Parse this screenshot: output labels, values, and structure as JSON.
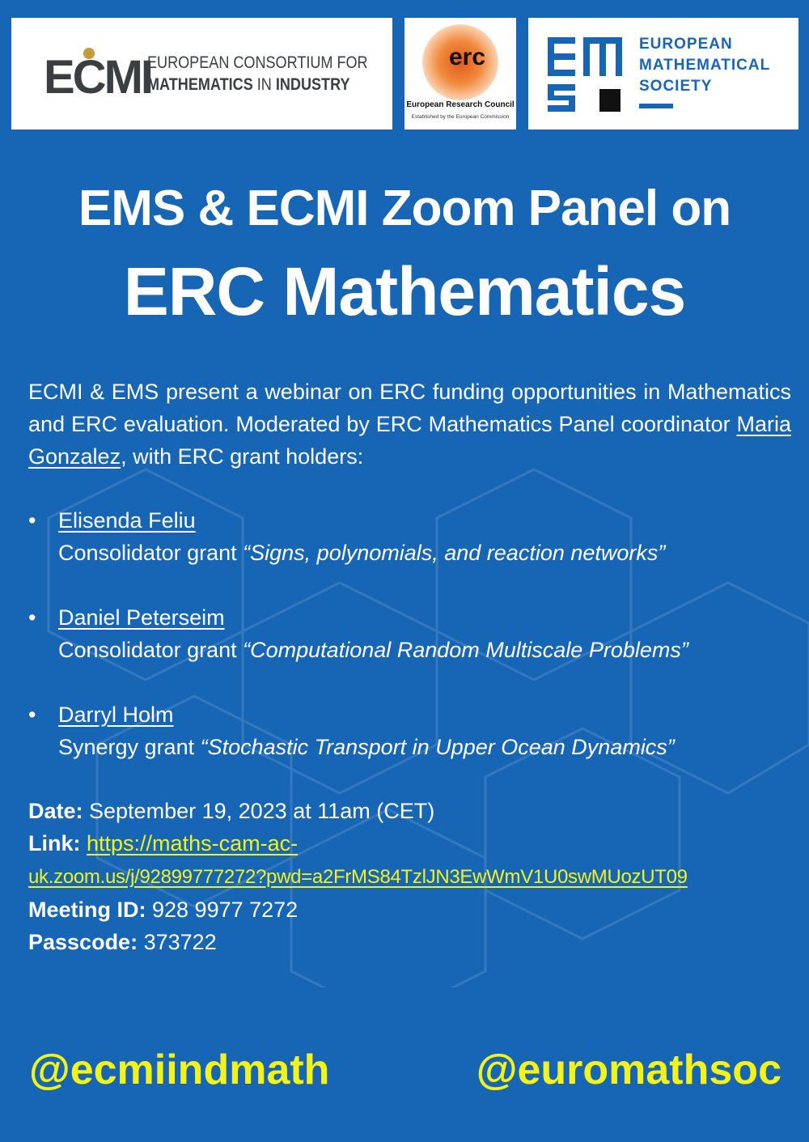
{
  "logos": {
    "ecmi": {
      "mark": "ECMI",
      "line1": "EUROPEAN CONSORTIUM FOR",
      "line2_a": "MATHEMATICS",
      "line2_b": " IN ",
      "line2_c": "INDUSTRY"
    },
    "erc": {
      "mark": "erc",
      "name": "European Research Council",
      "subtitle": "Established by the European Commission",
      "color": "#e2591c"
    },
    "ems": {
      "line1": "EUROPEAN",
      "line2": "MATHEMATICAL",
      "line3": "SOCIETY",
      "color": "#1766b6"
    }
  },
  "title": {
    "line1": "EMS & ECMI Zoom Panel on",
    "line2": "ERC Mathematics"
  },
  "intro": {
    "before": "ECMI & EMS present a webinar on ERC funding opportunities in Mathematics and ERC evaluation. Moderated by ERC Mathematics Panel coordinator ",
    "moderator": "Maria Gonzalez",
    "after": ", with ERC grant holders:"
  },
  "speakers": [
    {
      "name": "Elisenda Feliu",
      "grant": "Consolidator grant ",
      "project": "“Signs, polynomials, and reaction networks”"
    },
    {
      "name": "Daniel Peterseim",
      "grant": "Consolidator grant ",
      "project": "“Computational Random Multiscale Problems”"
    },
    {
      "name": "Darryl Holm",
      "grant": "Synergy grant ",
      "project": "“Stochastic Transport in Upper Ocean Dynamics”"
    }
  ],
  "details": {
    "date_label": "Date:",
    "date": " September 19, 2023 at 11am (CET)",
    "link_label": "Link:",
    "link_part1": "https://maths-cam-ac-",
    "link_part2": "uk.zoom.us/j/92899777272?pwd=a2FrMS84TzlJN3EwWmV1U0swMUozUT09",
    "meeting_label": "Meeting ID:",
    "meeting_id": " 928 9977 7272",
    "passcode_label": "Passcode:",
    "passcode": " 373722"
  },
  "handles": {
    "left": "@ecmiindmath",
    "right": "@euromathsoc"
  },
  "colors": {
    "background": "#1766b6",
    "accent": "#f3f31a"
  }
}
